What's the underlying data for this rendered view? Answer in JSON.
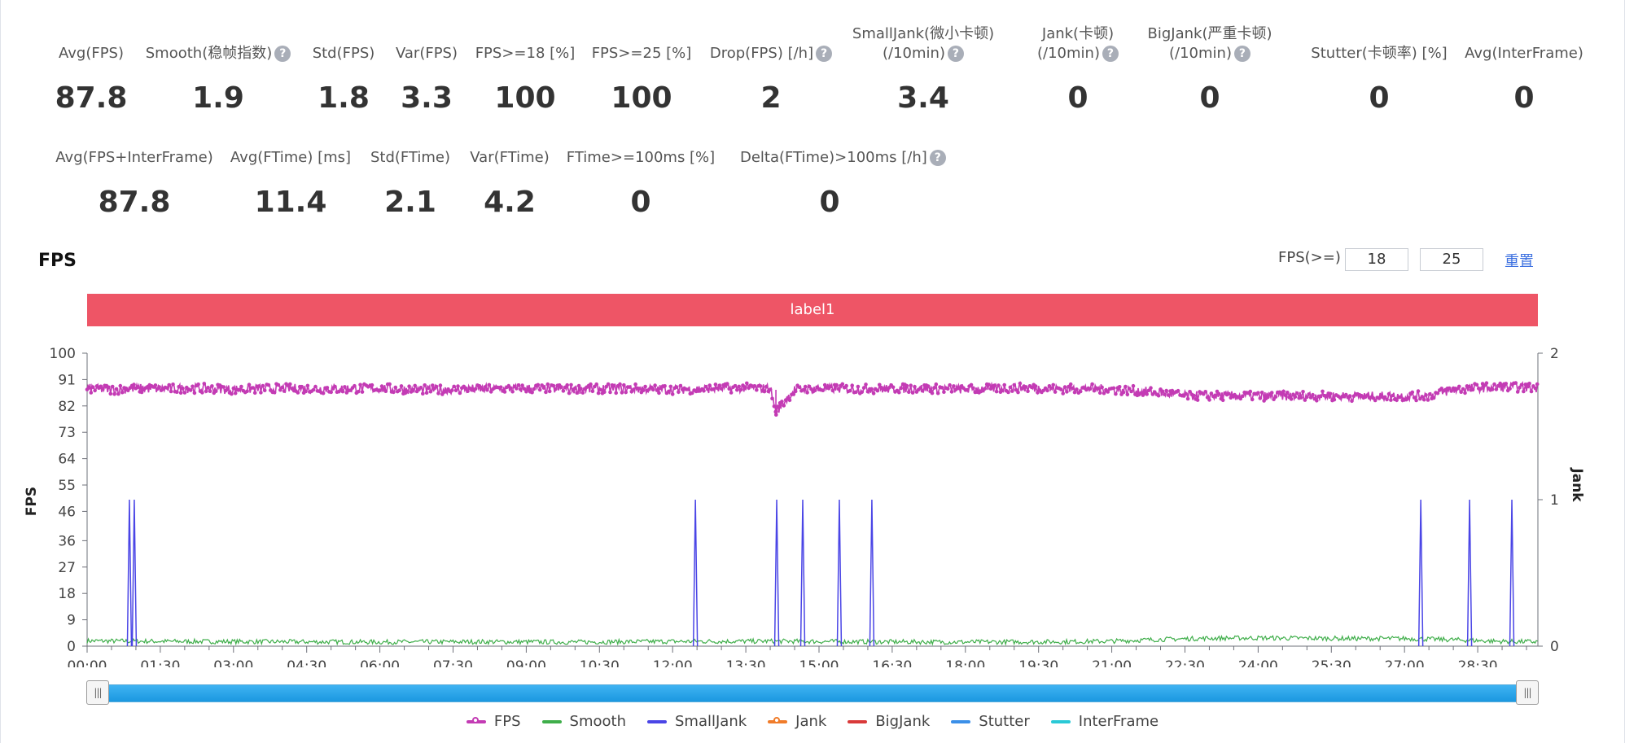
{
  "metrics_row1": [
    {
      "label": "Avg(FPS)",
      "value": "87.8",
      "help": false
    },
    {
      "label": "Smooth(稳帧指数)",
      "value": "1.9",
      "help": true
    },
    {
      "label": "Std(FPS)",
      "value": "1.8",
      "help": false
    },
    {
      "label": "Var(FPS)",
      "value": "3.3",
      "help": false
    },
    {
      "label": "FPS>=18 [%]",
      "value": "100",
      "help": false
    },
    {
      "label": "FPS>=25 [%]",
      "value": "100",
      "help": false
    },
    {
      "label": "Drop(FPS) [/h]",
      "value": "2",
      "help": true
    },
    {
      "label": "SmallJank(微小卡顿)",
      "label2": "(/10min)",
      "value": "3.4",
      "help": true
    },
    {
      "label": "Jank(卡顿)",
      "label2": "(/10min)",
      "value": "0",
      "help": true
    },
    {
      "label": "BigJank(严重卡顿)",
      "label2": "(/10min)",
      "value": "0",
      "help": true
    },
    {
      "label": "Stutter(卡顿率) [%]",
      "value": "0",
      "help": false
    },
    {
      "label": "Avg(InterFrame)",
      "value": "0",
      "help": false
    }
  ],
  "metrics_row2": [
    {
      "label": "Avg(FPS+InterFrame)",
      "value": "87.8",
      "help": false
    },
    {
      "label": "Avg(FTime) [ms]",
      "value": "11.4",
      "help": false
    },
    {
      "label": "Std(FTime)",
      "value": "2.1",
      "help": false
    },
    {
      "label": "Var(FTime)",
      "value": "4.2",
      "help": false
    },
    {
      "label": "FTime>=100ms [%]",
      "value": "0",
      "help": false
    },
    {
      "label": "Delta(FTime)>100ms [/h]",
      "value": "0",
      "help": true
    }
  ],
  "section_title": "FPS",
  "fps_filter": {
    "label": "FPS(>=)",
    "low": "18",
    "high": "25",
    "reset_label": "重置"
  },
  "label_band": "label1",
  "help_glyph": "?",
  "slider": {
    "handle_glyph": "|||"
  },
  "colors": {
    "fps": "#c33bb4",
    "smooth": "#3fae4a",
    "smalljank": "#4a45e6",
    "jank": "#f07c2a",
    "bigjank": "#d93a3a",
    "stutter": "#3b8fe8",
    "interframe": "#2ac9d6",
    "label_band": "#ee5566"
  },
  "chart_data": {
    "type": "line",
    "xlabel": "",
    "ylabel": "FPS",
    "y2label": "Jank",
    "x_range_seconds": [
      0,
      1784
    ],
    "x_ticks": [
      "00:00",
      "01:30",
      "03:00",
      "04:30",
      "06:00",
      "07:30",
      "09:00",
      "10:30",
      "12:00",
      "13:30",
      "15:00",
      "16:30",
      "18:00",
      "19:30",
      "21:00",
      "22:30",
      "24:00",
      "25:30",
      "27:00",
      "28:30"
    ],
    "y_ticks": [
      0,
      9,
      18,
      27,
      36,
      46,
      55,
      64,
      73,
      82,
      91,
      100
    ],
    "ylim": [
      0,
      100
    ],
    "y2_ticks": [
      0,
      1,
      2
    ],
    "y2lim": [
      0,
      2
    ],
    "grid": false,
    "legend_position": "bottom",
    "legend": [
      "FPS",
      "Smooth",
      "SmallJank",
      "Jank",
      "BigJank",
      "Stutter",
      "InterFrame"
    ],
    "series": [
      {
        "name": "FPS",
        "axis": "left",
        "x_seconds": [
          0,
          30,
          60,
          90,
          120,
          150,
          180,
          240,
          300,
          360,
          420,
          480,
          540,
          600,
          660,
          720,
          780,
          810,
          840,
          847,
          870,
          900,
          960,
          1020,
          1080,
          1140,
          1200,
          1230,
          1260,
          1290,
          1320,
          1350,
          1380,
          1440,
          1500,
          1560,
          1620,
          1650,
          1680,
          1710,
          1740,
          1784
        ],
        "values": [
          88,
          87.5,
          88,
          87.8,
          88,
          88,
          87.6,
          88,
          87.8,
          88,
          87.5,
          87.8,
          88,
          87.7,
          88,
          87.6,
          88,
          88.2,
          88,
          80,
          87.5,
          88,
          87.8,
          88,
          87.7,
          88.2,
          87.8,
          88,
          87.6,
          87.2,
          86.5,
          85.5,
          85.5,
          85.3,
          85.5,
          85.2,
          85.4,
          85.5,
          87.5,
          88.2,
          88.4,
          88.2
        ]
      },
      {
        "name": "Smooth",
        "axis": "left",
        "x_seconds": [
          0,
          120,
          240,
          360,
          480,
          600,
          720,
          840,
          960,
          1080,
          1200,
          1260,
          1320,
          1380,
          1440,
          1500,
          1560,
          1620,
          1680,
          1740,
          1784
        ],
        "values": [
          1.8,
          1.6,
          1.5,
          1.4,
          1.5,
          1.4,
          1.6,
          1.7,
          1.5,
          1.4,
          1.5,
          1.7,
          2.3,
          2.7,
          2.8,
          2.7,
          2.6,
          2.6,
          2.2,
          1.6,
          1.5
        ]
      },
      {
        "name": "SmallJank",
        "axis": "right",
        "events_seconds": [
          52,
          58,
          748,
          848,
          880,
          925,
          965,
          1640,
          1700,
          1752
        ],
        "value": 1
      },
      {
        "name": "Jank",
        "axis": "right",
        "events_seconds": [],
        "value": 1
      },
      {
        "name": "BigJank",
        "axis": "right",
        "events_seconds": [],
        "value": 1
      },
      {
        "name": "Stutter",
        "axis": "left",
        "values": []
      },
      {
        "name": "InterFrame",
        "axis": "left",
        "values": []
      }
    ]
  }
}
